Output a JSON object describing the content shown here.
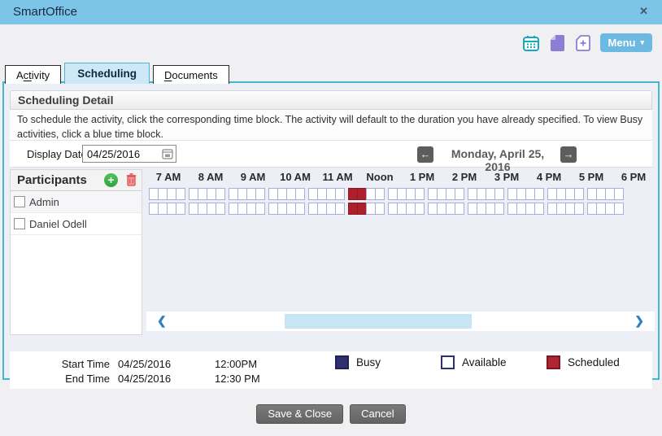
{
  "window": {
    "title": "SmartOffice",
    "close_glyph": "✕"
  },
  "toolbar": {
    "menu_label": "Menu",
    "menu_caret": "▾",
    "icons": [
      "calendar-icon",
      "new-document-icon",
      "add-document-icon"
    ]
  },
  "tabs": [
    {
      "id": "activity",
      "pre": "A",
      "accel": "ct",
      "post": "ivity",
      "active": false
    },
    {
      "id": "scheduling",
      "pre": "",
      "accel": "",
      "post": "Scheduling",
      "active": true
    },
    {
      "id": "documents",
      "pre": "",
      "accel": "D",
      "post": "ocuments",
      "active": false
    }
  ],
  "scheduling_detail": {
    "title": "Scheduling Detail",
    "instructions": "To schedule the activity, click the corresponding time block. The activity will default to the duration you have already specified. To view Busy activities, click a blue time block."
  },
  "display_date": {
    "label": "Display Date",
    "value": "04/25/2016"
  },
  "date_nav": {
    "prev_glyph": "←",
    "next_glyph": "→",
    "current_date": "Monday, April 25, 2016"
  },
  "participants": {
    "title": "Participants",
    "add_glyph": "+",
    "items": [
      {
        "name": "Admin",
        "checked": false
      },
      {
        "name": "Daniel Odell",
        "checked": false
      }
    ]
  },
  "grid": {
    "hours": [
      "7 AM",
      "8 AM",
      "9 AM",
      "10 AM",
      "11 AM",
      "Noon",
      "1 PM",
      "2 PM",
      "3 PM",
      "4 PM",
      "5 PM",
      "6 PM"
    ],
    "slots_per_hour": 4,
    "rows": 2,
    "scheduled_cells": [
      {
        "row": 0,
        "hour": 5,
        "slots": [
          0,
          1
        ]
      },
      {
        "row": 1,
        "hour": 5,
        "slots": [
          0,
          1
        ]
      }
    ]
  },
  "scrollbar": {
    "left_glyph": "❮",
    "right_glyph": "❯"
  },
  "footer_times": {
    "start_label": "Start Time",
    "start_date": "04/25/2016",
    "start_time": "12:00PM",
    "end_label": "End Time",
    "end_date": "04/25/2016",
    "end_time": "12:30 PM"
  },
  "legend": [
    {
      "label": "Busy",
      "fill": "#2e3170",
      "border": "#1f2152"
    },
    {
      "label": "Available",
      "fill": "#ffffff",
      "border": "#2e3170"
    },
    {
      "label": "Scheduled",
      "fill": "#b02532",
      "border": "#7e1722"
    }
  ],
  "buttons": {
    "save": "Save & Close",
    "cancel": "Cancel"
  },
  "colors": {
    "titlebar": "#7cc5e8",
    "accent_border": "#43b7cd",
    "scheduled_cell": "#ad1f2b",
    "menu_button": "#6cb9e2",
    "icon_teal": "#18a8be",
    "icon_purple": "#8c7fd3"
  }
}
